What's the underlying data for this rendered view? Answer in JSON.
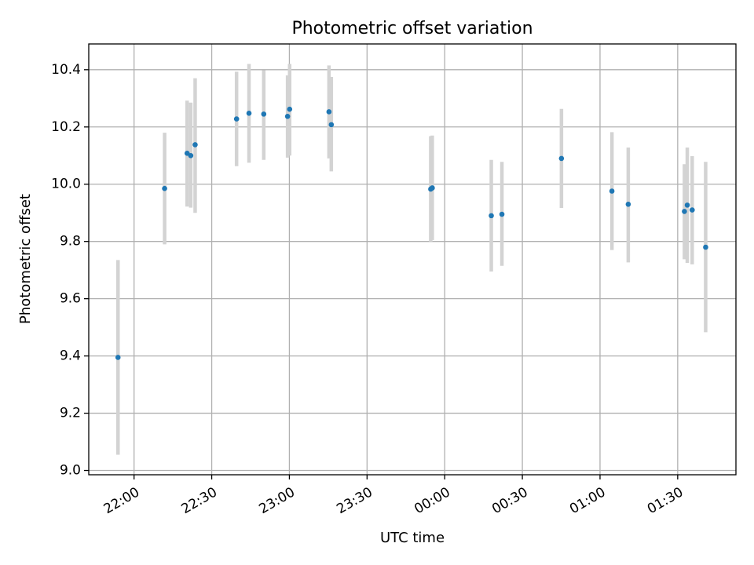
{
  "chart_data": {
    "type": "scatter",
    "title": "Photometric offset variation",
    "xlabel": "UTC time",
    "ylabel": "Photometric offset",
    "grid": true,
    "x_unit": "minutes after 22:00 UTC",
    "xlim": [
      -17.5,
      232.5
    ],
    "ylim": [
      8.985,
      10.49
    ],
    "x_ticks": [
      {
        "value": 0,
        "label": "22:00"
      },
      {
        "value": 30,
        "label": "22:30"
      },
      {
        "value": 60,
        "label": "23:00"
      },
      {
        "value": 90,
        "label": "23:30"
      },
      {
        "value": 120,
        "label": "00:00"
      },
      {
        "value": 150,
        "label": "00:30"
      },
      {
        "value": 180,
        "label": "01:00"
      },
      {
        "value": 210,
        "label": "01:30"
      }
    ],
    "y_ticks": [
      {
        "value": 9.0,
        "label": "9.0"
      },
      {
        "value": 9.2,
        "label": "9.2"
      },
      {
        "value": 9.4,
        "label": "9.4"
      },
      {
        "value": 9.6,
        "label": "9.6"
      },
      {
        "value": 9.8,
        "label": "9.8"
      },
      {
        "value": 10.0,
        "label": "10.0"
      },
      {
        "value": 10.2,
        "label": "10.2"
      },
      {
        "value": 10.4,
        "label": "10.4"
      }
    ],
    "marker_color": "#1f77b4",
    "errorbar_color": "#d3d3d3",
    "points": [
      {
        "x": -6.2,
        "y": 9.395,
        "lo": 9.055,
        "hi": 9.735
      },
      {
        "x": 11.8,
        "y": 9.985,
        "lo": 9.79,
        "hi": 10.18
      },
      {
        "x": 20.5,
        "y": 10.108,
        "lo": 9.922,
        "hi": 10.292
      },
      {
        "x": 21.9,
        "y": 10.1,
        "lo": 9.918,
        "hi": 10.285
      },
      {
        "x": 23.6,
        "y": 10.138,
        "lo": 9.9,
        "hi": 10.37
      },
      {
        "x": 39.6,
        "y": 10.228,
        "lo": 10.063,
        "hi": 10.393
      },
      {
        "x": 44.4,
        "y": 10.248,
        "lo": 10.075,
        "hi": 10.42
      },
      {
        "x": 50.1,
        "y": 10.245,
        "lo": 10.085,
        "hi": 10.398
      },
      {
        "x": 59.3,
        "y": 10.237,
        "lo": 10.093,
        "hi": 10.38
      },
      {
        "x": 60.1,
        "y": 10.262,
        "lo": 10.1,
        "hi": 10.42
      },
      {
        "x": 75.3,
        "y": 10.253,
        "lo": 10.09,
        "hi": 10.415
      },
      {
        "x": 76.2,
        "y": 10.208,
        "lo": 10.045,
        "hi": 10.375
      },
      {
        "x": 114.6,
        "y": 9.983,
        "lo": 9.8,
        "hi": 10.168
      },
      {
        "x": 115.2,
        "y": 9.987,
        "lo": 9.805,
        "hi": 10.17
      },
      {
        "x": 138.0,
        "y": 9.89,
        "lo": 9.695,
        "hi": 10.085
      },
      {
        "x": 142.1,
        "y": 9.895,
        "lo": 9.715,
        "hi": 10.078
      },
      {
        "x": 165.1,
        "y": 10.09,
        "lo": 9.917,
        "hi": 10.263
      },
      {
        "x": 184.6,
        "y": 9.976,
        "lo": 9.77,
        "hi": 10.182
      },
      {
        "x": 190.9,
        "y": 9.93,
        "lo": 9.727,
        "hi": 10.128
      },
      {
        "x": 212.6,
        "y": 9.905,
        "lo": 9.738,
        "hi": 10.07
      },
      {
        "x": 213.7,
        "y": 9.927,
        "lo": 9.725,
        "hi": 10.128
      },
      {
        "x": 215.6,
        "y": 9.91,
        "lo": 9.72,
        "hi": 10.098
      },
      {
        "x": 220.8,
        "y": 9.78,
        "lo": 9.483,
        "hi": 10.078
      }
    ]
  }
}
